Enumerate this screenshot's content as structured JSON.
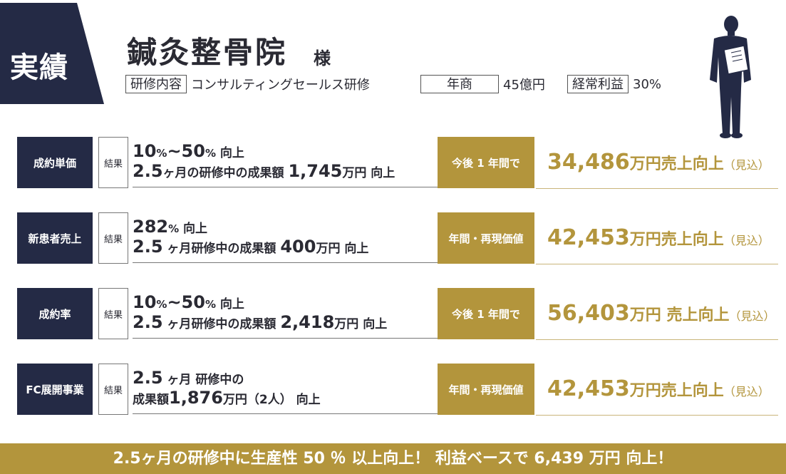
{
  "header": {
    "badge": "実績",
    "client_name": "鍼灸整骨院",
    "client_suffix": "様",
    "training_label": "研修内容",
    "training_value": "コンサルティングセールス研修",
    "sales_label": "年商",
    "sales_value": "45億円",
    "profit_label": "経常利益",
    "profit_value": "30%"
  },
  "rows": [
    {
      "category": "成約単価",
      "result_label": "結果",
      "l1_a": "10",
      "l1_b": "%",
      "l1_c": "~",
      "l1_d": "50",
      "l1_e": "%",
      "l1_f": " 向上",
      "l2_a": "2.5",
      "l2_b": "ヶ月",
      "l2_c": "の研修中の成果額 ",
      "l2_d": "1,745",
      "l2_e": "万円",
      "l2_f": " 向上",
      "period": "今後 1 年間で",
      "value": "34,486",
      "value_unit": "万円売上向上",
      "value_note": "（見込）"
    },
    {
      "category": "新患者売上",
      "result_label": "結果",
      "l1_a": "282",
      "l1_b": "%",
      "l1_c": "",
      "l1_d": "",
      "l1_e": "",
      "l1_f": " 向上",
      "l2_a": "2.5",
      "l2_b": " ヶ月",
      "l2_c": "研修中の成果額 ",
      "l2_d": "400",
      "l2_e": "万円",
      "l2_f": " 向上",
      "period": "年間・再現価値",
      "value": "42,453",
      "value_unit": "万円売上向上",
      "value_note": "（見込）"
    },
    {
      "category": "成約率",
      "result_label": "結果",
      "l1_a": "10",
      "l1_b": "%",
      "l1_c": "~",
      "l1_d": "50",
      "l1_e": "%",
      "l1_f": " 向上",
      "l2_a": "2.5",
      "l2_b": " ヶ月",
      "l2_c": "研修中の成果額 ",
      "l2_d": "2,418",
      "l2_e": "万円",
      "l2_f": " 向上",
      "period": "今後 1 年間で",
      "value": "56,403",
      "value_unit": "万円 売上向上",
      "value_note": "（見込）"
    },
    {
      "category": "FC展開事業",
      "result_label": "結果",
      "l1_a": "2.5",
      "l1_b": " ヶ月",
      "l1_c": " 研修中の",
      "l1_d": "",
      "l1_e": "",
      "l1_f": "",
      "l2_a": "",
      "l2_b": "",
      "l2_c": "成果額",
      "l2_d": "1,876",
      "l2_e": "万円（2人）",
      "l2_f": " 向上",
      "period": "年間・再現価値",
      "value": "42,453",
      "value_unit": "万円売上向上",
      "value_note": "（見込）"
    }
  ],
  "footer": {
    "text": "2.5ヶ月の研修中に生産性 50 ％ 以上向上！ 利益ベースで 6,439 万円 向上！"
  },
  "colors": {
    "navy": "#242a45",
    "gold": "#b3953c"
  },
  "icons": {
    "figure": "businessman-silhouette-icon"
  }
}
